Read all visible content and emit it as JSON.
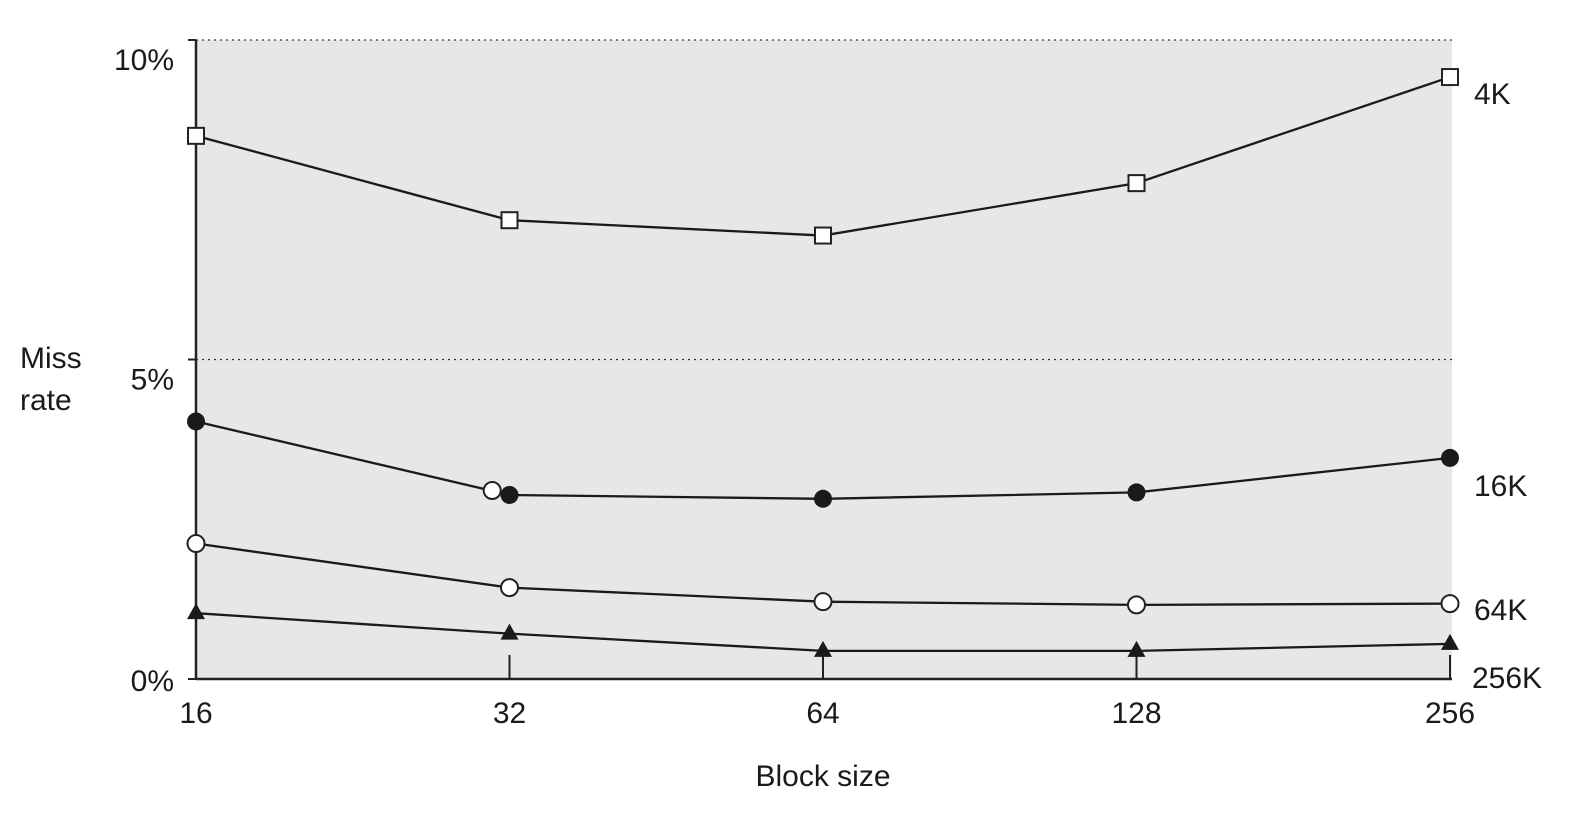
{
  "chart_data": {
    "type": "line",
    "title": "",
    "xlabel": "Block size",
    "ylabel": [
      "Miss",
      "rate"
    ],
    "x": [
      16,
      32,
      64,
      128,
      256
    ],
    "x_scale": "log2",
    "xtick_labels": [
      "16",
      "32",
      "64",
      "128",
      "256"
    ],
    "ylim": [
      0,
      10
    ],
    "ytick_values": [
      0,
      5,
      10
    ],
    "ytick_labels": [
      "0%",
      "5%",
      "10%"
    ],
    "grid": "dotted horizontal at 5% and 10%",
    "background": "#e6e7e9",
    "series": [
      {
        "name": "4K",
        "marker": "open-square",
        "values": [
          8.5,
          7.18,
          6.94,
          7.76,
          9.42
        ]
      },
      {
        "name": "16K",
        "marker": "filled-circle",
        "values": [
          4.03,
          2.88,
          2.82,
          2.92,
          3.46
        ]
      },
      {
        "name": "64K",
        "marker": "open-circle",
        "values": [
          2.12,
          1.43,
          1.21,
          1.16,
          1.18
        ]
      },
      {
        "name": "256K",
        "marker": "filled-triangle",
        "values": [
          1.03,
          0.71,
          0.44,
          0.44,
          0.55
        ]
      }
    ],
    "annotations": [
      {
        "marker": "open-circle",
        "x": 30.8,
        "y": 2.95
      }
    ]
  }
}
